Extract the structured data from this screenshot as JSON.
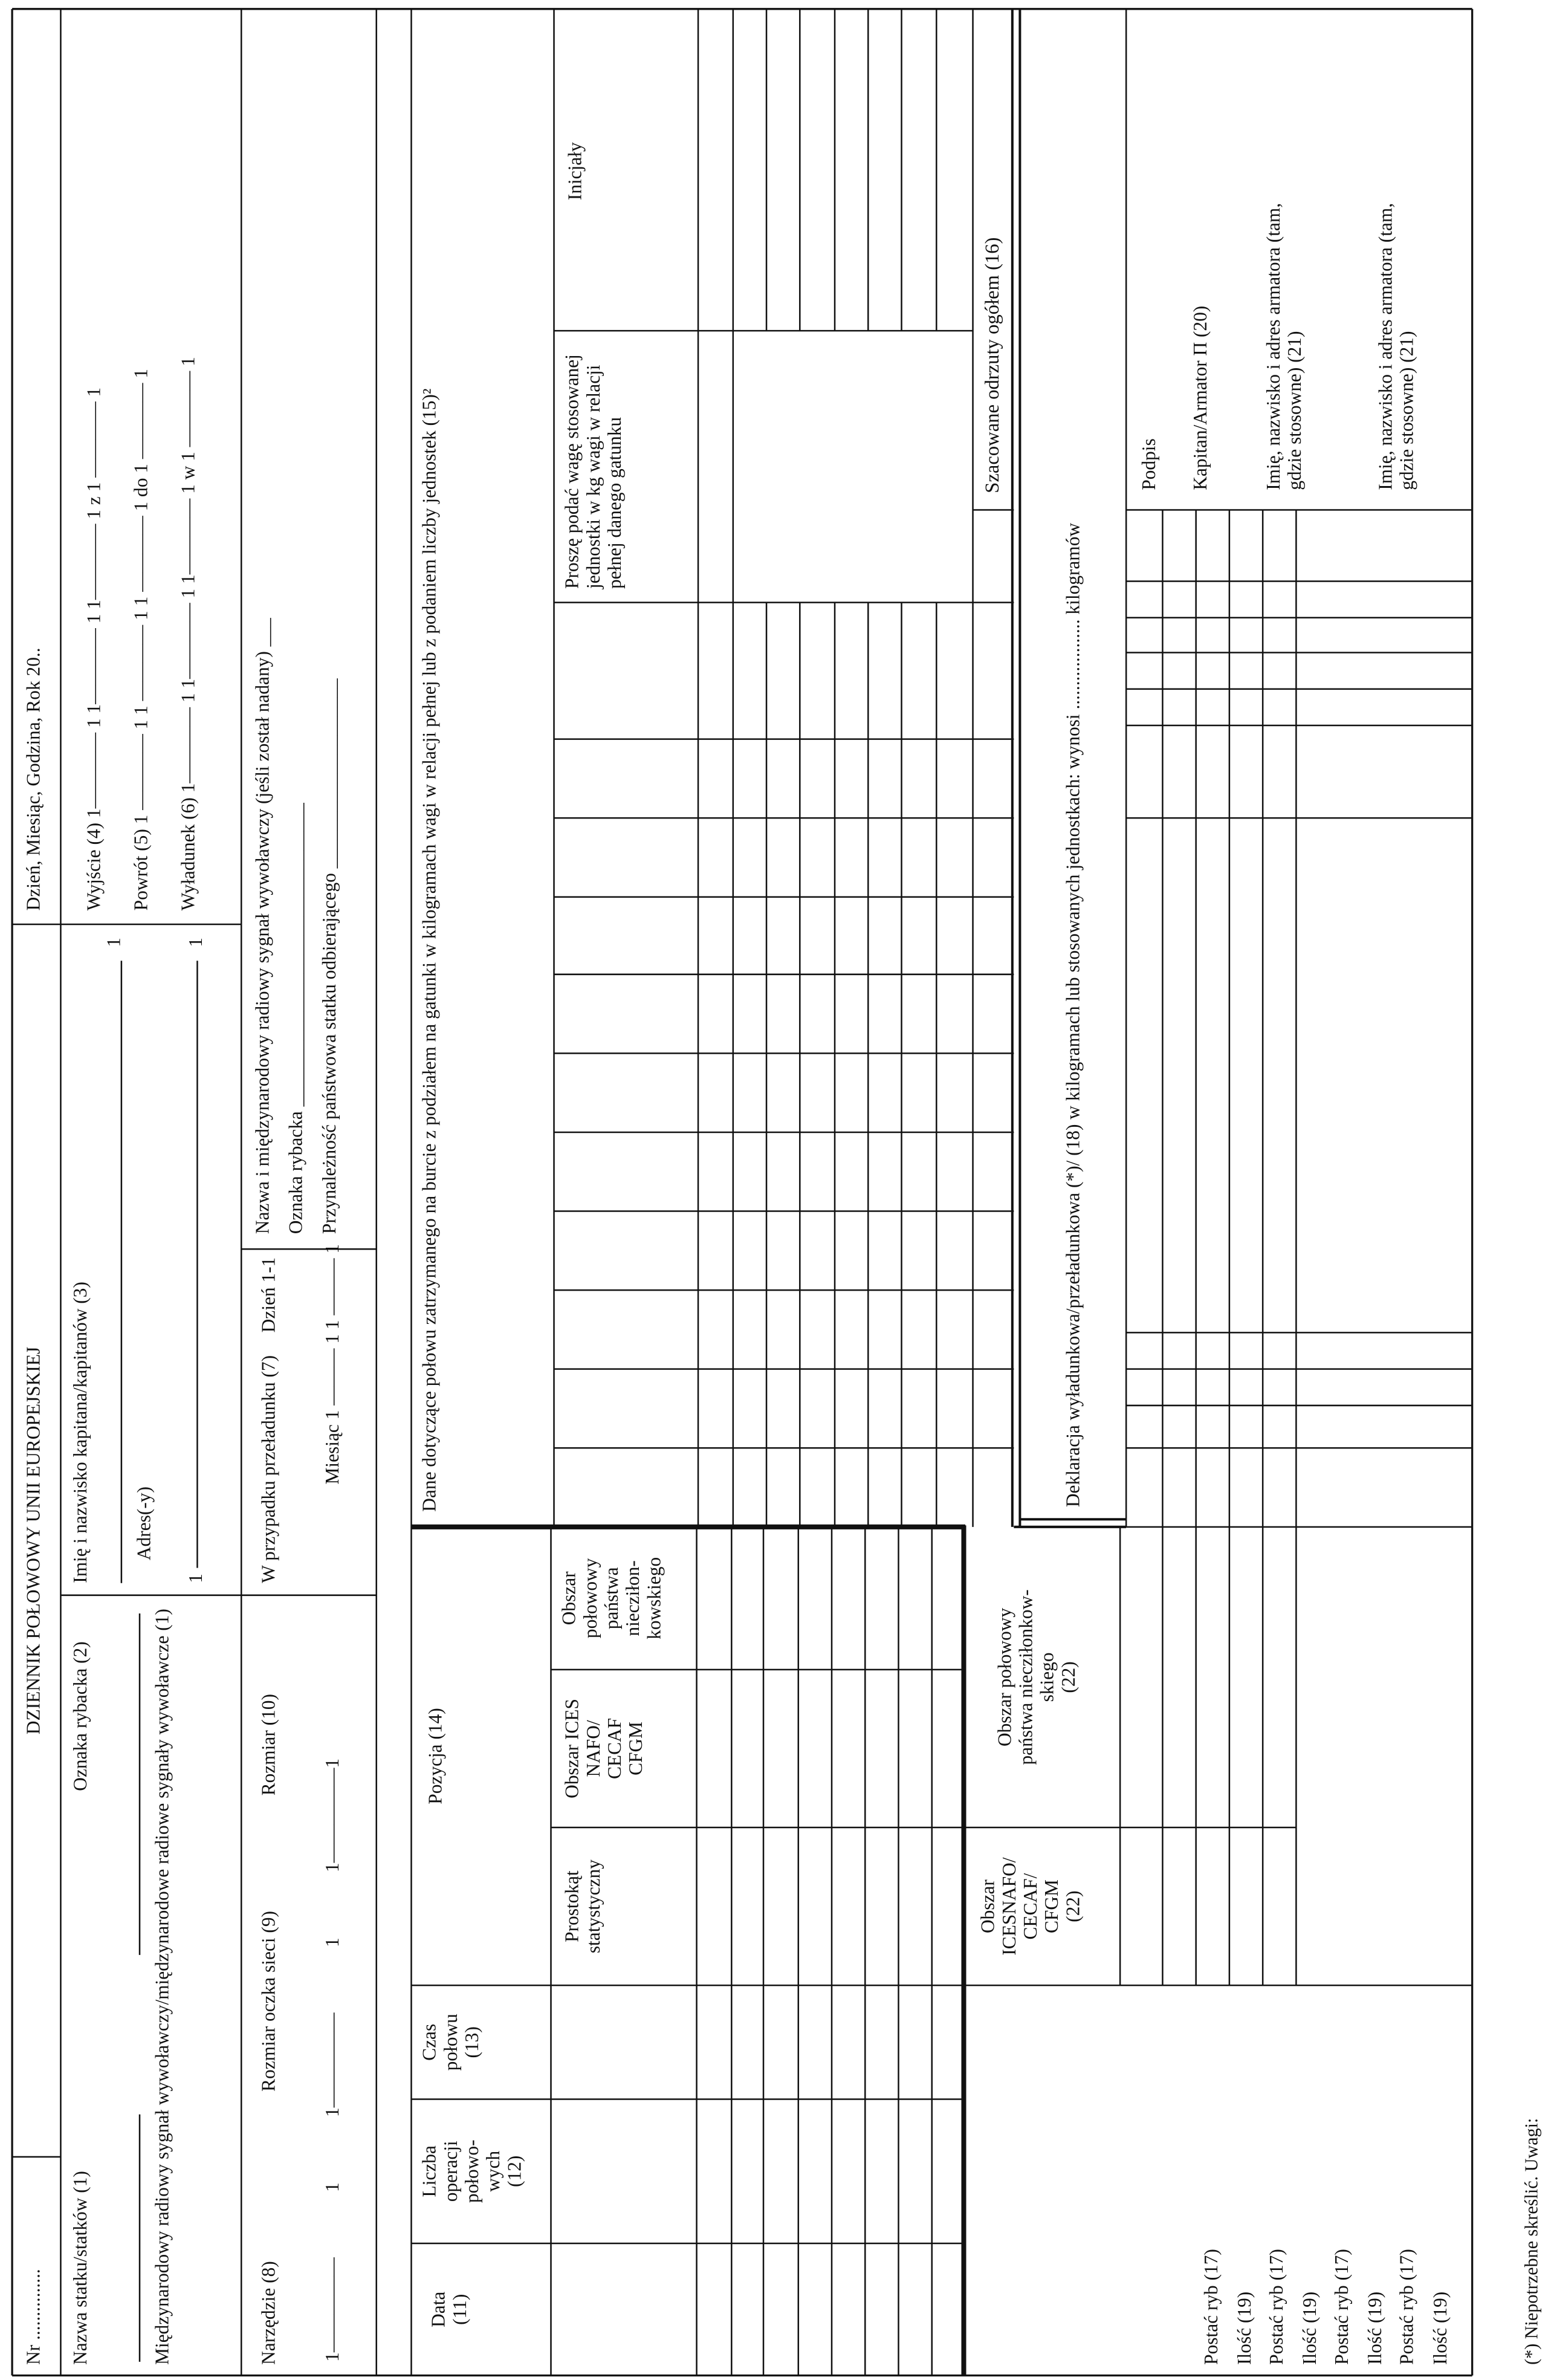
{
  "header": {
    "nr": "Nr ...............",
    "title": "DZIENNIK POŁOWOWY UNII EUROPEJSKIEJ",
    "date_label": "Dzień, Miesiąc, Godzina, Rok 20.."
  },
  "vessel": {
    "name_label": "Nazwa statku/statków (1)",
    "fishing_mark_label": "Oznaka rybacka (2)",
    "radio_label": "Międzynarodowy radiowy sygnał wywoławczy/międzynarodowe radiowe sygnały wywoławcze (1)",
    "captain_label": "Imię i nazwisko kapitana/kapitanów (3)",
    "captain_end": "1",
    "address_label": "Adres(-y)",
    "address_start": "1",
    "address_end": "1",
    "departure": "Wyjście (4) 1———— 1 1———— 1 1———— 1 z 1 ———— 1",
    "return": "Powrót (5) 1 ———— 1 1 ———— 1 1 ———— 1 do 1 ———— 1",
    "landing": "Wyładunek (6) 1———— 1 1———— 1 1———— 1 w 1 ———— 1"
  },
  "gear": {
    "gear_label": "Narzędzie (8)",
    "mesh_label": "Rozmiar oczka sieci (9)",
    "size_label": "Rozmiar (10)",
    "values_line": "1————— 1   1————— 1   1—————1"
  },
  "transhipment": {
    "label": "W przypadku przeładunku (7)",
    "day": "Dzień 1-1",
    "month": "Miesiąc 1 ——— 1 1 ——— 1",
    "receiver_name": "Nazwa i międzynarodowy radiowy sygnał wywoławczy (jeśli został nadany) ___",
    "receiver_mark": "Oznaka rybacka ________________________________",
    "receiver_flag": "Przynależność państwowa statku odbierającego ____________________"
  },
  "catch_table": {
    "date": "Data\n(11)",
    "operations": "Liczba\noperacji\npołowo-\nwych\n(12)",
    "time": "Czas\npołowu\n(13)",
    "position": "Pozycja (14)",
    "rectangle": "Prostokąt\nstatystyczny",
    "ices_area": "Obszar ICES\nNAFO/\nCECAF\nCFGM",
    "nonmember_area": "Obszar\npołowowy\npaństwa\nniecziłon-\nkowskiego",
    "species_header": "Dane dotyczące połowu zatrzymanego na burcie z podziałem na gatunki w kilogramach wagi w relacji pełnej lub z podaniem liczby jednostek (15)²",
    "unit_weight_note": "Proszę podać wagę stosowanej jednostki w kg wagi w relacji pełnej danego gatunku",
    "initials": "Inicjały",
    "discards": "Szacowane odrzuty ogółem (16)"
  },
  "landing_declaration": {
    "text": "Deklaracja wyładunkowa/przeładunkowa (*)/ (18) w kilogramach lub stosowanych jednostkach: wynosi ................... kilogramów",
    "ices_area": "Obszar\nICESNAFO/\nCECAF/\nCFGM\n(22)",
    "nonmember_area": "Obszar połowowy\npaństwa niecziłonkow-\nskiego\n(22)",
    "fish_rows": [
      "Postać ryb (17)",
      "Ilość (19)",
      "Postać ryb (17)",
      "Ilość (19)",
      "Postać ryb (17)",
      "Ilość (19)",
      "Postać ryb (17)",
      "Ilość (19)"
    ],
    "signature": "Podpis",
    "captain_owner": "Kapitan/Armator Π (20)",
    "owner_1": "Imię, nazwisko i adres armatora (tam,\ngdzie stosowne) (21)",
    "owner_2": "Imię, nazwisko i adres armatora (tam,\ngdzie stosowne) (21)"
  },
  "footnote": "(*) Niepotrzebne skreślić. Uwagi:"
}
